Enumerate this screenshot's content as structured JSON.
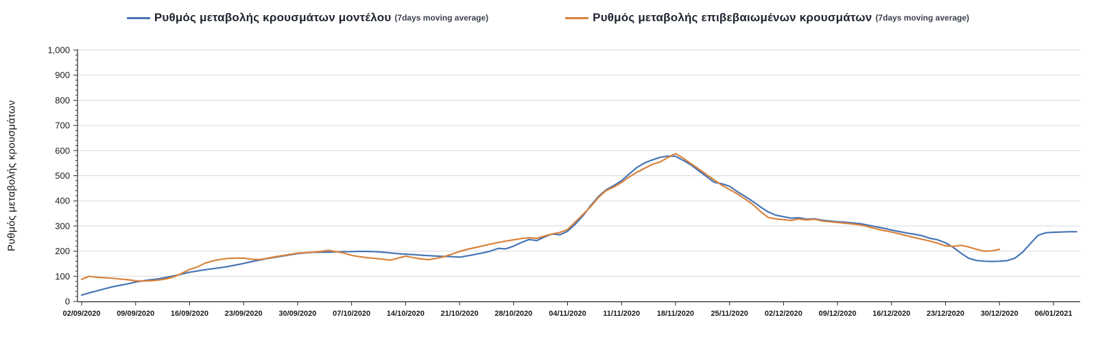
{
  "legend": [
    {
      "label": "Ρυθμός μεταβολής κρουσμάτων μοντέλου",
      "suffix": "(7days moving average)",
      "color": "#4674B4"
    },
    {
      "label": "Ρυθμός μεταβολής επιβεβαιωμένων κρουσμάτων",
      "suffix": "(7days moving average)",
      "color": "#D9823B"
    }
  ],
  "chart_data": {
    "type": "line",
    "title": "",
    "xlabel": "",
    "ylabel": "Ρυθμός μεταβολής κρουσμάτων",
    "ylim": [
      0,
      1000
    ],
    "y_major_step": 100,
    "y_minor_step": 20,
    "y_tick_labels": [
      "0",
      "100",
      "200",
      "300",
      "400",
      "500",
      "600",
      "700",
      "800",
      "900",
      "1,000"
    ],
    "grid": "horizontal-only",
    "legend_position": "top-center",
    "x_unit": "days since 02/09/2020, weekly ticks",
    "x_tick_days": [
      0,
      7,
      14,
      21,
      28,
      35,
      42,
      49,
      56,
      63,
      70,
      77,
      84,
      91,
      98,
      105,
      112,
      119,
      126
    ],
    "x_tick_labels": [
      "02/09/2020",
      "09/09/2020",
      "16/09/2020",
      "23/09/2020",
      "30/09/2020",
      "07/10/2020",
      "14/10/2020",
      "21/10/2020",
      "28/10/2020",
      "04/11/2020",
      "11/11/2020",
      "18/11/2020",
      "25/11/2020",
      "02/12/2020",
      "09/12/2020",
      "16/12/2020",
      "23/12/2020",
      "30/12/2020",
      "06/01/2021"
    ],
    "series": [
      {
        "name": "Ρυθμός μεταβολής κρουσμάτων μοντέλου (7days moving average)",
        "color": "#4674B4",
        "points": [
          [
            0,
            25
          ],
          [
            1,
            34
          ],
          [
            2,
            42
          ],
          [
            3,
            50
          ],
          [
            4,
            58
          ],
          [
            5,
            64
          ],
          [
            6,
            70
          ],
          [
            7,
            77
          ],
          [
            8,
            82
          ],
          [
            9,
            86
          ],
          [
            10,
            90
          ],
          [
            11,
            96
          ],
          [
            12,
            102
          ],
          [
            13,
            109
          ],
          [
            14,
            116
          ],
          [
            15,
            121
          ],
          [
            16,
            126
          ],
          [
            17,
            130
          ],
          [
            18,
            134
          ],
          [
            19,
            139
          ],
          [
            20,
            145
          ],
          [
            21,
            151
          ],
          [
            22,
            158
          ],
          [
            23,
            164
          ],
          [
            24,
            170
          ],
          [
            25,
            175
          ],
          [
            26,
            180
          ],
          [
            27,
            185
          ],
          [
            28,
            190
          ],
          [
            29,
            193
          ],
          [
            30,
            195
          ],
          [
            31,
            196
          ],
          [
            32,
            196
          ],
          [
            33,
            197
          ],
          [
            34,
            198
          ],
          [
            35,
            198
          ],
          [
            36,
            199
          ],
          [
            37,
            199
          ],
          [
            38,
            198
          ],
          [
            39,
            196
          ],
          [
            40,
            193
          ],
          [
            41,
            190
          ],
          [
            42,
            188
          ],
          [
            43,
            186
          ],
          [
            44,
            184
          ],
          [
            45,
            182
          ],
          [
            46,
            180
          ],
          [
            47,
            179
          ],
          [
            48,
            178
          ],
          [
            49,
            176
          ],
          [
            50,
            181
          ],
          [
            51,
            187
          ],
          [
            52,
            193
          ],
          [
            53,
            200
          ],
          [
            54,
            211
          ],
          [
            55,
            209
          ],
          [
            56,
            220
          ],
          [
            57,
            234
          ],
          [
            58,
            246
          ],
          [
            59,
            242
          ],
          [
            60,
            256
          ],
          [
            61,
            268
          ],
          [
            62,
            265
          ],
          [
            63,
            279
          ],
          [
            64,
            307
          ],
          [
            65,
            341
          ],
          [
            66,
            381
          ],
          [
            67,
            417
          ],
          [
            68,
            444
          ],
          [
            69,
            461
          ],
          [
            70,
            480
          ],
          [
            71,
            507
          ],
          [
            72,
            533
          ],
          [
            73,
            551
          ],
          [
            74,
            563
          ],
          [
            75,
            573
          ],
          [
            76,
            578
          ],
          [
            77,
            577
          ],
          [
            78,
            561
          ],
          [
            79,
            543
          ],
          [
            80,
            520
          ],
          [
            81,
            497
          ],
          [
            82,
            474
          ],
          [
            83,
            468
          ],
          [
            84,
            458
          ],
          [
            85,
            437
          ],
          [
            86,
            418
          ],
          [
            87,
            398
          ],
          [
            88,
            376
          ],
          [
            89,
            356
          ],
          [
            90,
            343
          ],
          [
            91,
            337
          ],
          [
            92,
            331
          ],
          [
            93,
            333
          ],
          [
            94,
            327
          ],
          [
            95,
            329
          ],
          [
            96,
            323
          ],
          [
            97,
            320
          ],
          [
            98,
            317
          ],
          [
            99,
            315
          ],
          [
            100,
            312
          ],
          [
            101,
            309
          ],
          [
            102,
            303
          ],
          [
            103,
            297
          ],
          [
            104,
            291
          ],
          [
            105,
            284
          ],
          [
            106,
            278
          ],
          [
            107,
            272
          ],
          [
            108,
            267
          ],
          [
            109,
            261
          ],
          [
            110,
            251
          ],
          [
            111,
            245
          ],
          [
            112,
            233
          ],
          [
            113,
            215
          ],
          [
            114,
            192
          ],
          [
            115,
            172
          ],
          [
            116,
            163
          ],
          [
            117,
            160
          ],
          [
            118,
            159
          ],
          [
            119,
            160
          ],
          [
            120,
            162
          ],
          [
            121,
            172
          ],
          [
            122,
            196
          ],
          [
            123,
            230
          ],
          [
            124,
            263
          ],
          [
            125,
            273
          ],
          [
            126,
            275
          ],
          [
            127,
            276
          ],
          [
            128,
            277
          ],
          [
            129,
            277
          ]
        ]
      },
      {
        "name": "Ρυθμός μεταβολής επιβεβαιωμένων κρουσμάτων (7days moving average)",
        "color": "#D9823B",
        "points": [
          [
            0,
            88
          ],
          [
            1,
            100
          ],
          [
            2,
            96
          ],
          [
            3,
            94
          ],
          [
            4,
            92
          ],
          [
            5,
            89
          ],
          [
            6,
            86
          ],
          [
            7,
            82
          ],
          [
            8,
            81
          ],
          [
            9,
            82
          ],
          [
            10,
            85
          ],
          [
            11,
            90
          ],
          [
            12,
            98
          ],
          [
            13,
            112
          ],
          [
            14,
            127
          ],
          [
            15,
            137
          ],
          [
            16,
            152
          ],
          [
            17,
            161
          ],
          [
            18,
            167
          ],
          [
            19,
            171
          ],
          [
            20,
            172
          ],
          [
            21,
            172
          ],
          [
            22,
            168
          ],
          [
            23,
            166
          ],
          [
            24,
            171
          ],
          [
            25,
            177
          ],
          [
            26,
            182
          ],
          [
            27,
            187
          ],
          [
            28,
            192
          ],
          [
            29,
            194
          ],
          [
            30,
            196
          ],
          [
            31,
            199
          ],
          [
            32,
            203
          ],
          [
            33,
            198
          ],
          [
            34,
            192
          ],
          [
            35,
            183
          ],
          [
            36,
            178
          ],
          [
            37,
            174
          ],
          [
            38,
            171
          ],
          [
            39,
            168
          ],
          [
            40,
            164
          ],
          [
            41,
            172
          ],
          [
            42,
            180
          ],
          [
            43,
            174
          ],
          [
            44,
            169
          ],
          [
            45,
            166
          ],
          [
            46,
            171
          ],
          [
            47,
            178
          ],
          [
            48,
            188
          ],
          [
            49,
            199
          ],
          [
            50,
            207
          ],
          [
            51,
            214
          ],
          [
            52,
            221
          ],
          [
            53,
            228
          ],
          [
            54,
            234
          ],
          [
            55,
            240
          ],
          [
            56,
            245
          ],
          [
            57,
            250
          ],
          [
            58,
            253
          ],
          [
            59,
            251
          ],
          [
            60,
            260
          ],
          [
            61,
            268
          ],
          [
            62,
            274
          ],
          [
            63,
            286
          ],
          [
            64,
            316
          ],
          [
            65,
            346
          ],
          [
            66,
            377
          ],
          [
            67,
            413
          ],
          [
            68,
            441
          ],
          [
            69,
            455
          ],
          [
            70,
            473
          ],
          [
            71,
            495
          ],
          [
            72,
            514
          ],
          [
            73,
            530
          ],
          [
            74,
            545
          ],
          [
            75,
            555
          ],
          [
            76,
            572
          ],
          [
            77,
            588
          ],
          [
            78,
            570
          ],
          [
            79,
            548
          ],
          [
            80,
            527
          ],
          [
            81,
            505
          ],
          [
            82,
            483
          ],
          [
            83,
            462
          ],
          [
            84,
            445
          ],
          [
            85,
            428
          ],
          [
            86,
            408
          ],
          [
            87,
            386
          ],
          [
            88,
            358
          ],
          [
            89,
            334
          ],
          [
            90,
            328
          ],
          [
            91,
            325
          ],
          [
            92,
            322
          ],
          [
            93,
            328
          ],
          [
            94,
            324
          ],
          [
            95,
            327
          ],
          [
            96,
            320
          ],
          [
            97,
            317
          ],
          [
            98,
            314
          ],
          [
            99,
            311
          ],
          [
            100,
            308
          ],
          [
            101,
            304
          ],
          [
            102,
            297
          ],
          [
            103,
            289
          ],
          [
            104,
            282
          ],
          [
            105,
            276
          ],
          [
            106,
            269
          ],
          [
            107,
            261
          ],
          [
            108,
            254
          ],
          [
            109,
            247
          ],
          [
            110,
            240
          ],
          [
            111,
            231
          ],
          [
            112,
            221
          ],
          [
            113,
            219
          ],
          [
            114,
            223
          ],
          [
            115,
            217
          ],
          [
            116,
            207
          ],
          [
            117,
            200
          ],
          [
            118,
            201
          ],
          [
            119,
            207
          ]
        ]
      }
    ]
  }
}
